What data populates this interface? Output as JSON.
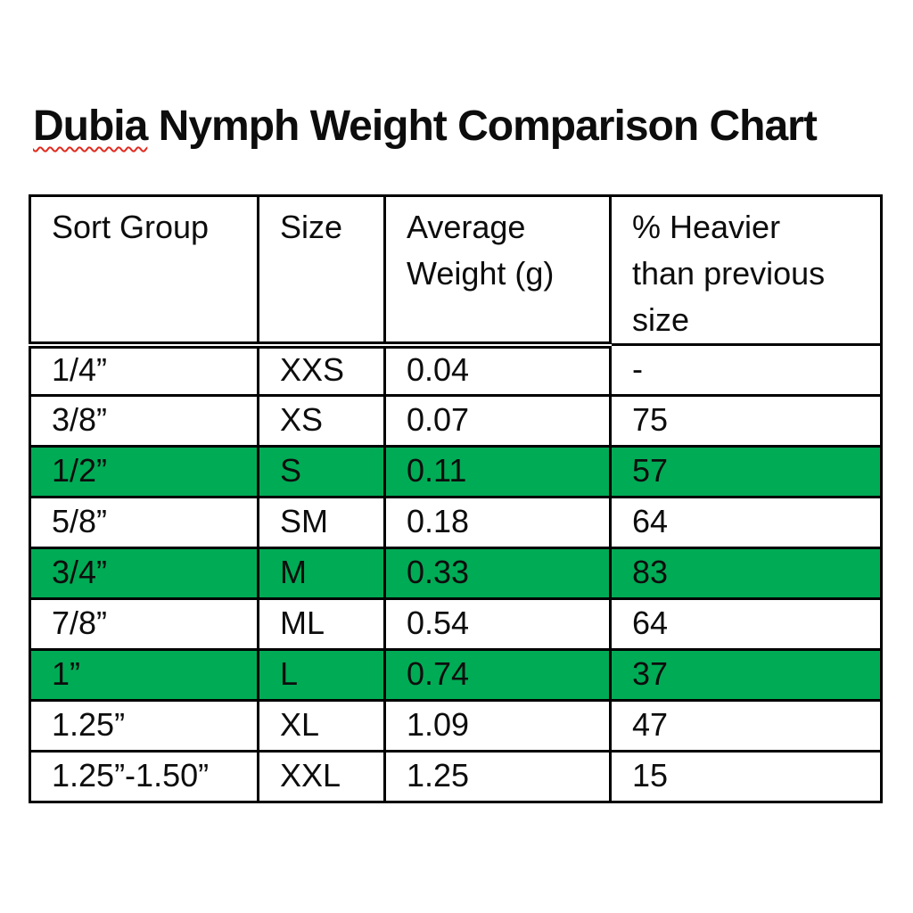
{
  "title": {
    "word_marked": "Dubia",
    "rest": " Nymph Weight Comparison Chart"
  },
  "colors": {
    "highlight_green": "#00AB55",
    "squiggle_red": "#E02B20",
    "border_black": "#000000"
  },
  "chart_data": {
    "type": "table",
    "title": "Dubia Nymph Weight Comparison Chart",
    "columns": [
      "Sort Group",
      "Size",
      "Average Weight (g)",
      "% Heavier than previous size"
    ],
    "rows": [
      [
        "1/4”",
        "XXS",
        "0.04",
        "-"
      ],
      [
        "3/8”",
        "XS",
        "0.07",
        "75"
      ],
      [
        "1/2”",
        "S",
        "0.11",
        "57"
      ],
      [
        "5/8”",
        "SM",
        "0.18",
        "64"
      ],
      [
        "3/4”",
        "M",
        "0.33",
        "83"
      ],
      [
        "7/8”",
        "ML",
        "0.54",
        "64"
      ],
      [
        "1”",
        "L",
        "0.74",
        "37"
      ],
      [
        "1.25”",
        "XL",
        "1.09",
        "47"
      ],
      [
        "1.25”-1.50”",
        "XXL",
        "1.25",
        "15"
      ]
    ],
    "highlighted_rows": [
      2,
      4,
      6
    ],
    "highlight_color": "#00AB55"
  }
}
